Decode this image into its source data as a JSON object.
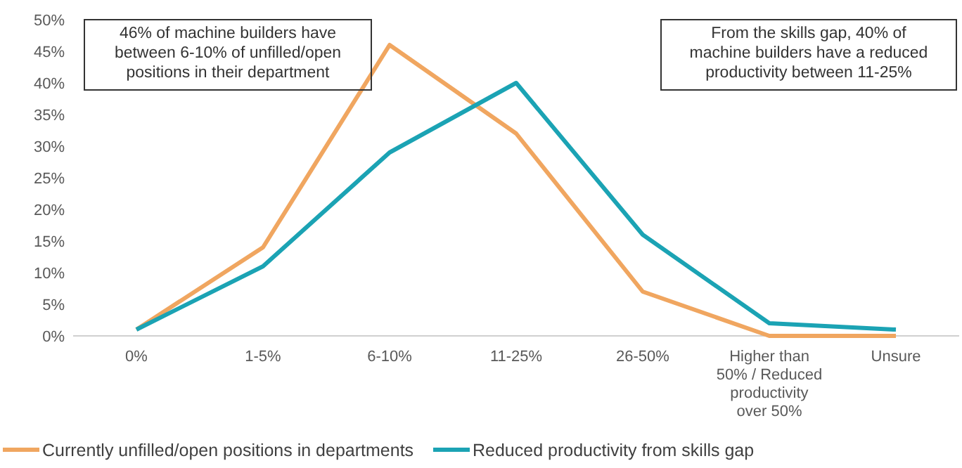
{
  "chart_data": {
    "type": "line",
    "categories": [
      "0%",
      "1-5%",
      "6-10%",
      "11-25%",
      "26-50%",
      "Higher than 50% / Reduced productivity over 50%",
      "Unsure"
    ],
    "series": [
      {
        "name": "Currently unfilled/open positions in departments",
        "color": "#f0a660",
        "values": [
          1,
          14,
          46,
          32,
          7,
          0,
          0
        ]
      },
      {
        "name": "Reduced productivity from skills gap",
        "color": "#1ba3b4",
        "values": [
          1,
          11,
          29,
          40,
          16,
          2,
          1
        ]
      }
    ],
    "ylim": [
      0,
      50
    ],
    "yticks": [
      {
        "value": 0,
        "label": "0%"
      },
      {
        "value": 5,
        "label": "5%"
      },
      {
        "value": 10,
        "label": "10%"
      },
      {
        "value": 15,
        "label": "15%"
      },
      {
        "value": 20,
        "label": "20%"
      },
      {
        "value": 25,
        "label": "25%"
      },
      {
        "value": 30,
        "label": "30%"
      },
      {
        "value": 35,
        "label": "35%"
      },
      {
        "value": 40,
        "label": "40%"
      },
      {
        "value": 45,
        "label": "45%"
      },
      {
        "value": 50,
        "label": "50%"
      }
    ],
    "annotations": [
      "46% of machine builders have between 6-10% of unfilled/open positions in their department",
      "From the skills gap, 40% of machine builders have a reduced productivity between 11-25%"
    ],
    "legend": "bottom left",
    "marker": "none",
    "line_style": "solid",
    "grid": false
  }
}
